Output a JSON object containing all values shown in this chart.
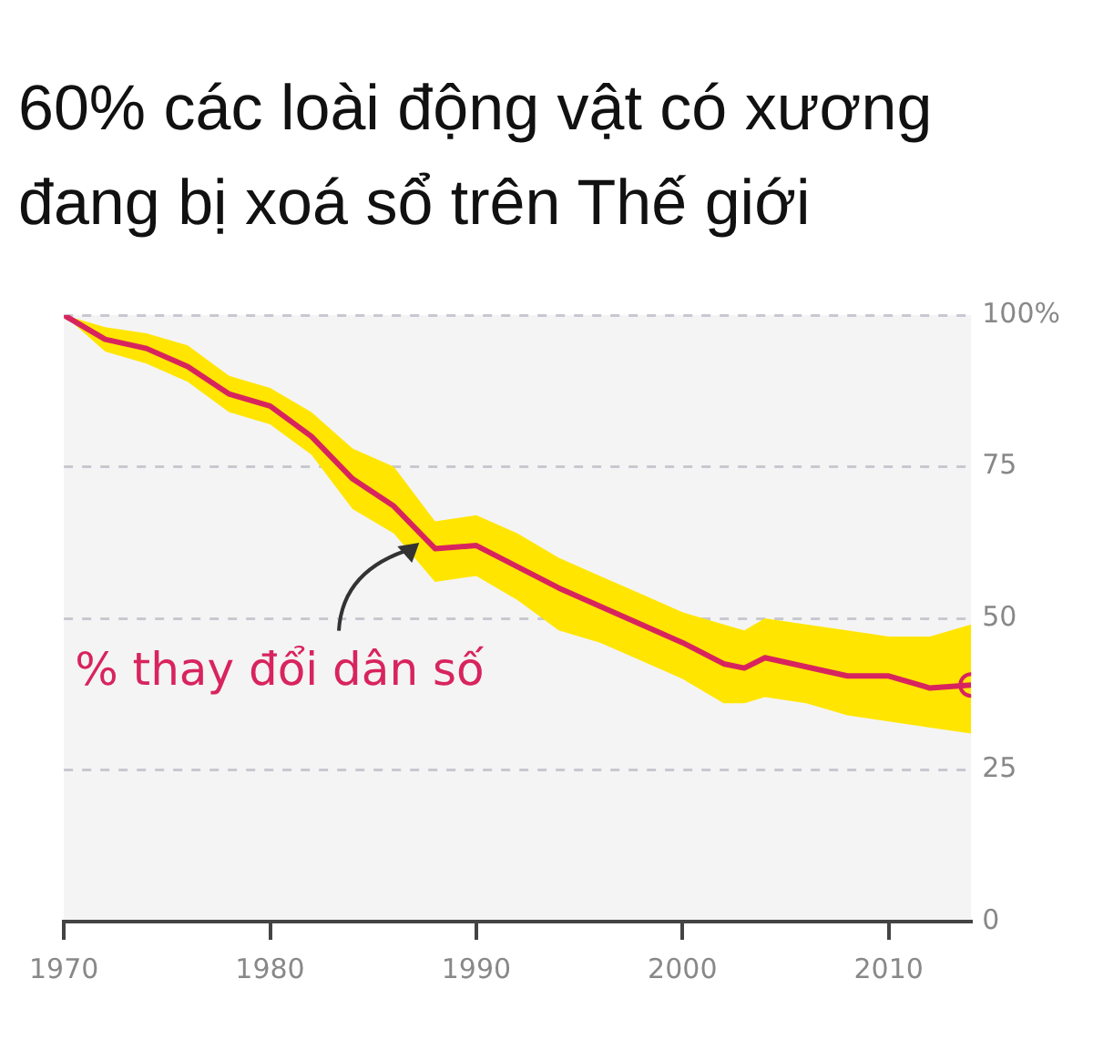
{
  "chart_data": {
    "type": "line",
    "title": "60% các loài động vật có xương đang bị xoá sổ trên Thế giới",
    "x": [
      1970,
      1972,
      1974,
      1976,
      1978,
      1980,
      1982,
      1984,
      1986,
      1988,
      1990,
      1992,
      1994,
      1996,
      1998,
      2000,
      2002,
      2003,
      2004,
      2006,
      2008,
      2010,
      2012,
      2014
    ],
    "series": [
      {
        "name": "% thay đổi dân số",
        "color": "#d8245e",
        "values": [
          100,
          96,
          94.5,
          91.5,
          87,
          85,
          80,
          73,
          68.5,
          61.5,
          62,
          58.5,
          55,
          52,
          49,
          46,
          42.5,
          41.8,
          43.5,
          42,
          40.5,
          40.5,
          38.5,
          39
        ],
        "lower": [
          100,
          94,
          92,
          89,
          84,
          82,
          77,
          68,
          64,
          56,
          57,
          53,
          48,
          46,
          43,
          40,
          36,
          36,
          37,
          36,
          34,
          33,
          32,
          31
        ],
        "upper": [
          100,
          98,
          97,
          95,
          90,
          88,
          84,
          78,
          75,
          66,
          67,
          64,
          60,
          57,
          54,
          51,
          49,
          48,
          50,
          49,
          48,
          47,
          47,
          49
        ]
      }
    ],
    "xlim": [
      1970,
      2014
    ],
    "xticks": [
      1970,
      1980,
      1990,
      2000,
      2010
    ],
    "ylim": [
      0,
      100
    ],
    "yticks": [
      0,
      25,
      50,
      75,
      {
        "value": 100,
        "label": "100%"
      }
    ],
    "grid": "y",
    "line_style": "solid"
  }
}
